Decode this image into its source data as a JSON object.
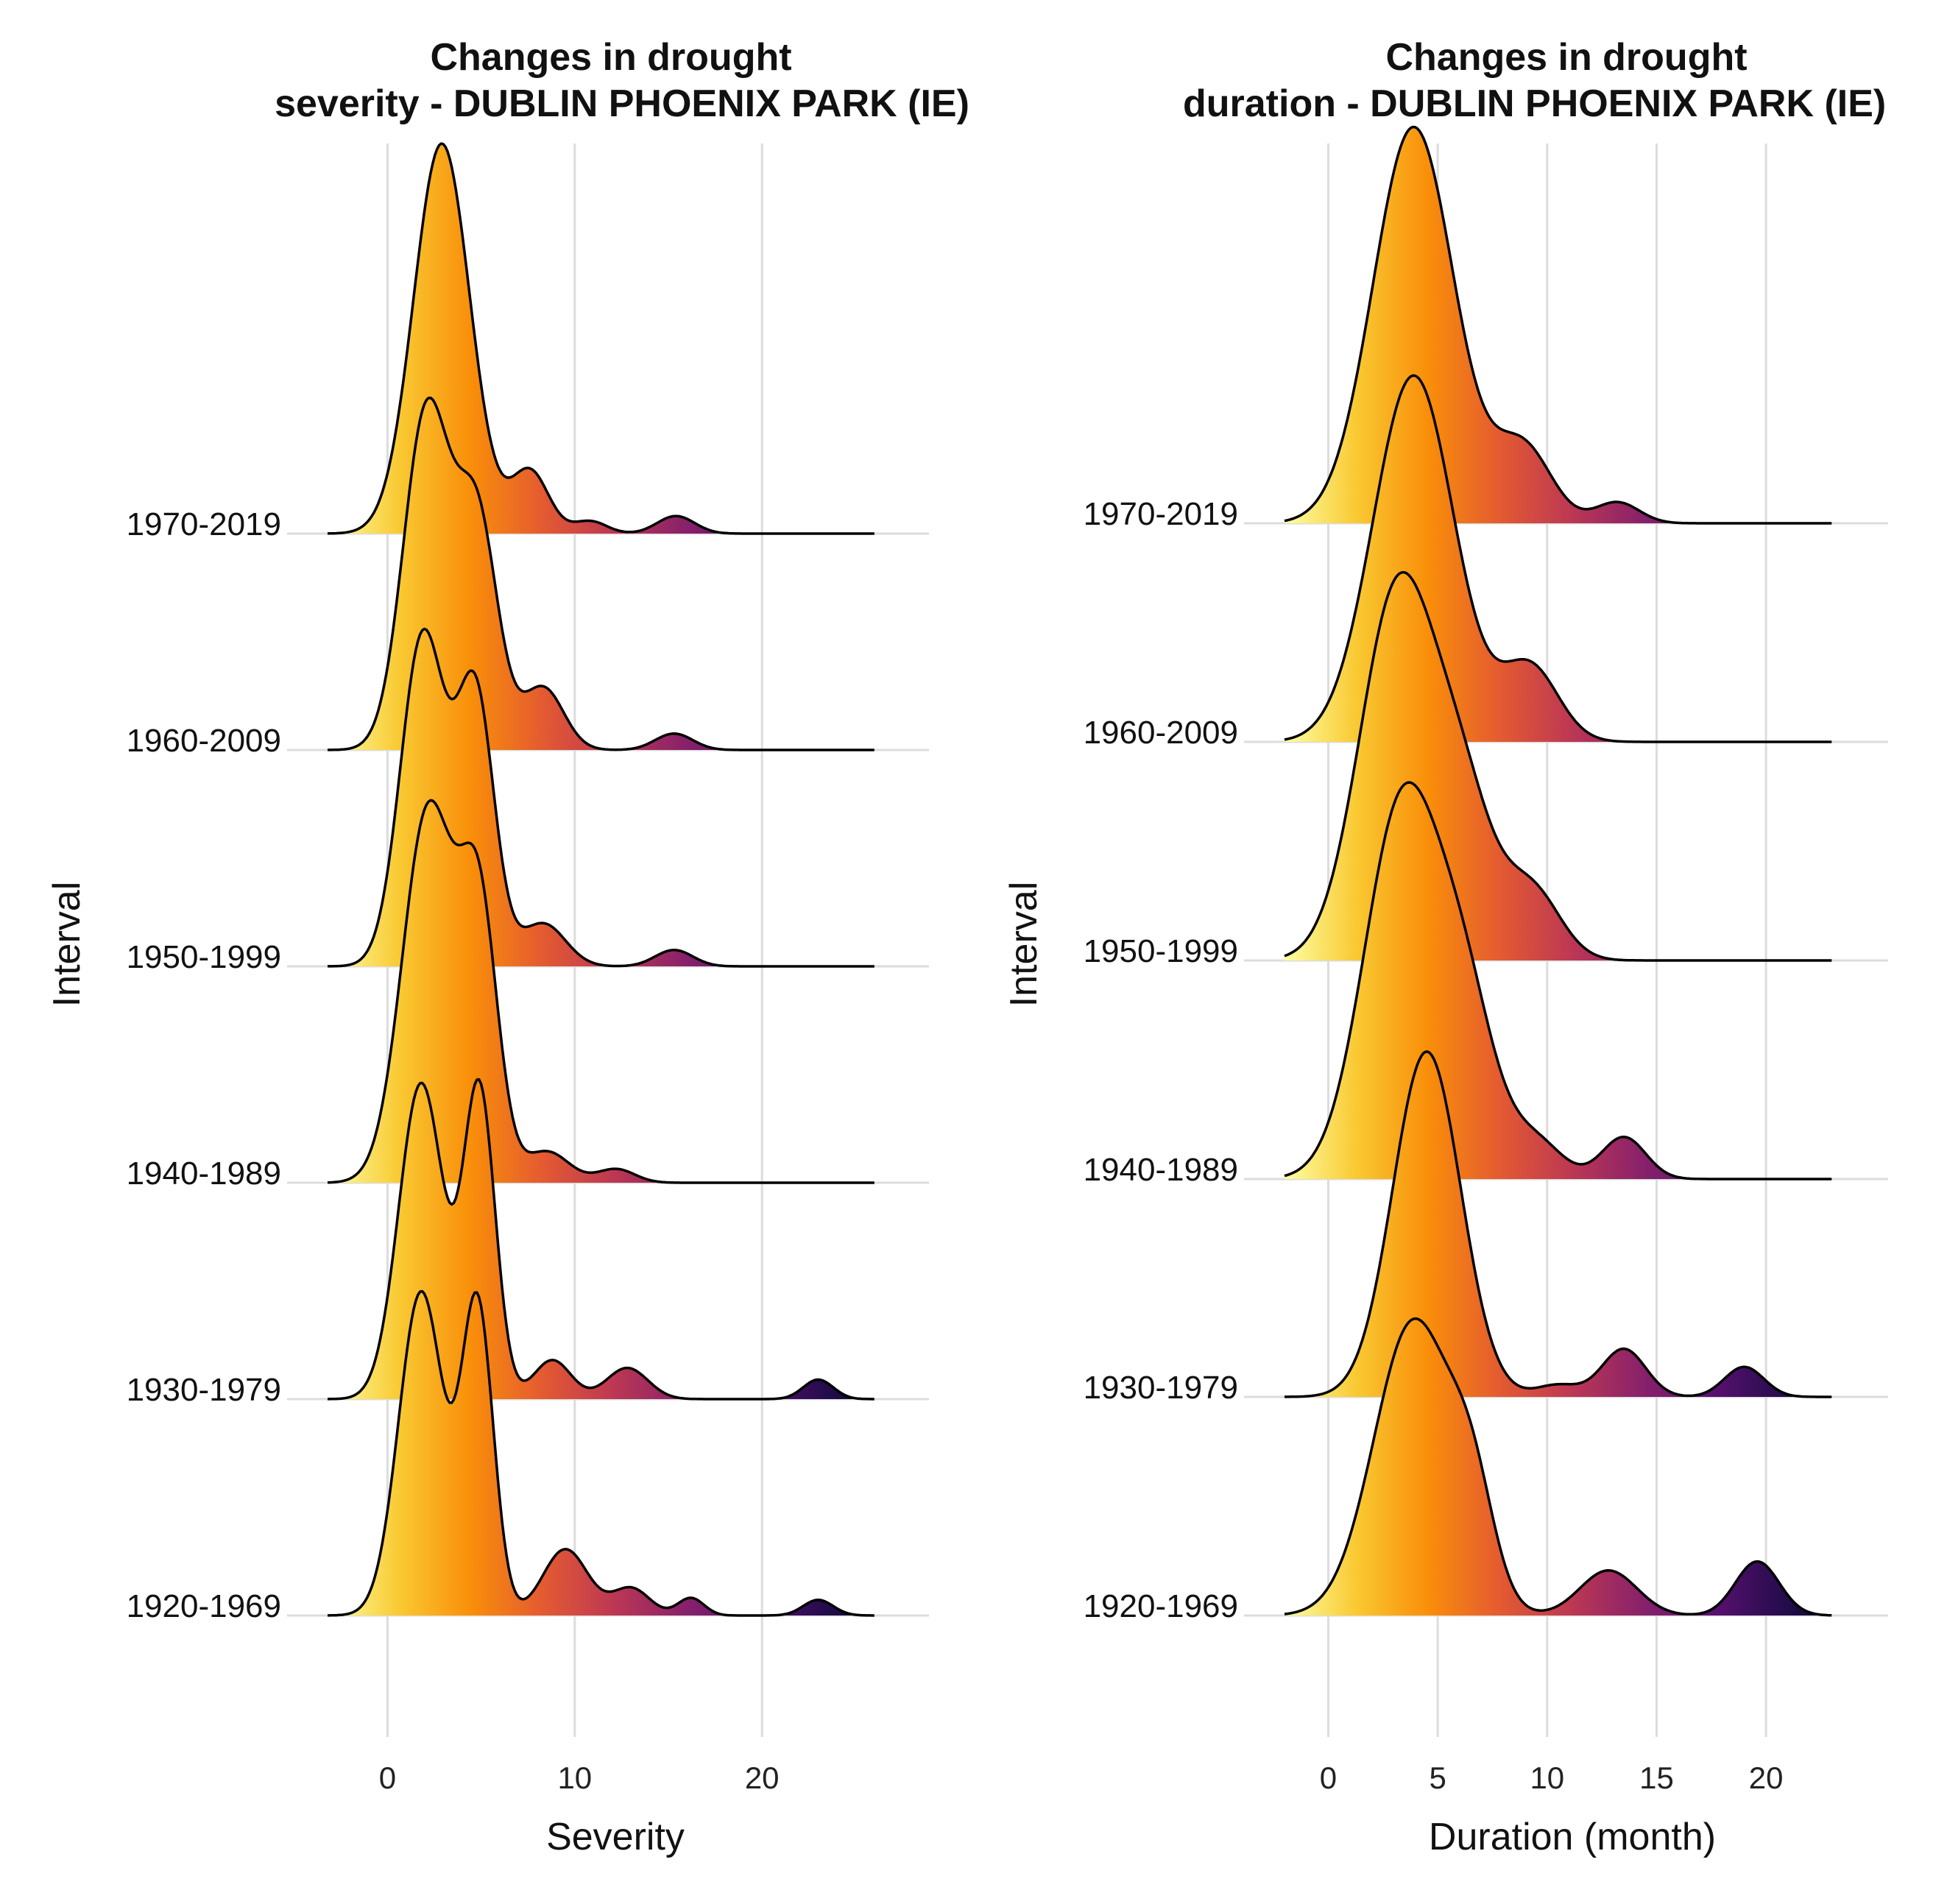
{
  "chart_data": [
    {
      "type": "ridgeline",
      "title": [
        "Changes in drought",
        "severity - DUBLIN PHOENIX PARK (IE)"
      ],
      "xlabel": "Severity",
      "ylabel": "Interval",
      "xlim": [
        -3.2,
        27.5
      ],
      "xticks": [
        0,
        10,
        20
      ],
      "xtick_labels": [
        "0",
        "10",
        "20"
      ],
      "grid": "vertical",
      "colormap": "inferno",
      "categories": [
        "1920-1969",
        "1930-1979",
        "1940-1989",
        "1950-1999",
        "1960-2009",
        "1970-2019"
      ],
      "series": [
        {
          "name": "1920-1969",
          "x_range": [
            -3.2,
            26
          ],
          "peaks": [
            [
              1.8,
              0.83,
              1.2
            ],
            [
              4.8,
              0.79,
              0.85
            ],
            [
              9.5,
              0.17,
              1.2
            ],
            [
              13,
              0.07,
              1.0
            ],
            [
              16.2,
              0.045,
              0.7
            ],
            [
              23,
              0.04,
              0.8
            ]
          ]
        },
        {
          "name": "1930-1979",
          "x_range": [
            -3.2,
            26
          ],
          "peaks": [
            [
              1.8,
              0.81,
              1.2
            ],
            [
              4.9,
              0.79,
              0.85
            ],
            [
              8.8,
              0.1,
              1.0
            ],
            [
              12.8,
              0.08,
              1.1
            ],
            [
              23,
              0.05,
              0.8
            ]
          ]
        },
        {
          "name": "1940-1989",
          "x_range": [
            -3.2,
            26
          ],
          "peaks": [
            [
              2.2,
              0.96,
              1.4
            ],
            [
              4.9,
              0.67,
              1.0
            ],
            [
              8.5,
              0.08,
              1.2
            ],
            [
              12.2,
              0.035,
              1.0
            ]
          ]
        },
        {
          "name": "1950-1999",
          "x_range": [
            -3.2,
            26
          ],
          "peaks": [
            [
              1.9,
              0.85,
              1.2
            ],
            [
              4.7,
              0.69,
              1.0
            ],
            [
              8.3,
              0.11,
              1.2
            ],
            [
              15.3,
              0.042,
              1.0
            ]
          ]
        },
        {
          "name": "1960-2009",
          "x_range": [
            -3.2,
            26
          ],
          "peaks": [
            [
              2.1,
              0.87,
              1.25
            ],
            [
              4.8,
              0.58,
              1.1
            ],
            [
              8.3,
              0.16,
              1.1
            ],
            [
              15.3,
              0.042,
              1.0
            ]
          ]
        },
        {
          "name": "1970-2019",
          "x_range": [
            -3.2,
            26
          ],
          "peaks": [
            [
              2.9,
              1.0,
              1.5
            ],
            [
              7.6,
              0.16,
              1.0
            ],
            [
              10.8,
              0.032,
              0.9
            ],
            [
              15.4,
              0.045,
              1.0
            ]
          ]
        }
      ]
    },
    {
      "type": "ridgeline",
      "title": [
        "Changes in drought",
        "duration - DUBLIN PHOENIX PARK (IE)"
      ],
      "xlabel": "Duration (month)",
      "ylabel": "Interval",
      "xlim": [
        -2.0,
        24.3
      ],
      "xticks": [
        0,
        5,
        10,
        15,
        20
      ],
      "xtick_labels": [
        "0",
        "5",
        "10",
        "15",
        "20"
      ],
      "grid": "vertical",
      "colormap": "inferno",
      "categories": [
        "1920-1969",
        "1930-1979",
        "1940-1989",
        "1950-1999",
        "1960-2009",
        "1970-2019"
      ],
      "series": [
        {
          "name": "1920-1969",
          "x_range": [
            -2.0,
            23
          ],
          "peaks": [
            [
              3.9,
              0.98,
              1.8
            ],
            [
              6.6,
              0.3,
              1.0
            ],
            [
              12.8,
              0.15,
              1.3
            ],
            [
              19.6,
              0.18,
              1.0
            ]
          ]
        },
        {
          "name": "1930-1979",
          "x_range": [
            -2.0,
            23
          ],
          "peaks": [
            [
              4.5,
              1.15,
              1.55
            ],
            [
              10.5,
              0.04,
              1.0
            ],
            [
              13.5,
              0.16,
              1.0
            ],
            [
              19,
              0.1,
              0.9
            ]
          ]
        },
        {
          "name": "1940-1989",
          "x_range": [
            -2.0,
            23
          ],
          "peaks": [
            [
              3.4,
              1.25,
              1.75
            ],
            [
              6.3,
              0.5,
              1.4
            ],
            [
              9.5,
              0.12,
              1.2
            ],
            [
              13.5,
              0.14,
              1.0
            ]
          ]
        },
        {
          "name": "1950-1999",
          "x_range": [
            -2.0,
            23
          ],
          "peaks": [
            [
              3.2,
              1.24,
              1.75
            ],
            [
              6.2,
              0.45,
              1.4
            ],
            [
              9.3,
              0.23,
              1.3
            ]
          ]
        },
        {
          "name": "1960-2009",
          "x_range": [
            -2.0,
            23
          ],
          "peaks": [
            [
              3.9,
              1.22,
              1.85
            ],
            [
              9.2,
              0.25,
              1.3
            ]
          ]
        },
        {
          "name": "1970-2019",
          "x_range": [
            -2.0,
            23
          ],
          "peaks": [
            [
              3.9,
              1.32,
              1.85
            ],
            [
              8.9,
              0.25,
              1.3
            ],
            [
              13.2,
              0.07,
              1.0
            ]
          ]
        }
      ]
    }
  ],
  "colors": {
    "inferno": [
      "#fcffa4",
      "#f9c932",
      "#f98e09",
      "#e45a31",
      "#bc3754",
      "#87216b",
      "#57106e",
      "#210c4a",
      "#000004"
    ],
    "grid": "#dcdcdc",
    "outline": "#000000"
  }
}
